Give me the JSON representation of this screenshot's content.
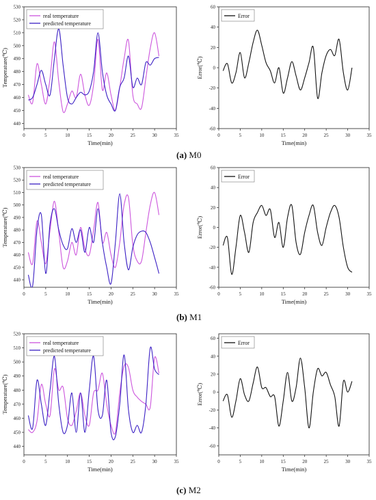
{
  "captions": [
    {
      "letter": "(a)",
      "model": "M0"
    },
    {
      "letter": "(b)",
      "model": "M1"
    },
    {
      "letter": "(c)",
      "model": "M2"
    }
  ],
  "colors": {
    "real": "#cc55dd",
    "predicted": "#3a1fc4",
    "error": "#111111"
  },
  "chart_data": [
    {
      "id": "a-temp",
      "type": "line",
      "xlabel": "Time(min)",
      "ylabel": "Temperature(℃)",
      "xlim": [
        0,
        35
      ],
      "xticks": [
        0,
        5,
        10,
        15,
        20,
        25,
        30,
        35
      ],
      "xtick_labels": [
        "0",
        "5",
        "10",
        "15",
        "20",
        "25",
        "30",
        "35"
      ],
      "ylim": [
        436,
        530
      ],
      "yticks": [
        440,
        450,
        460,
        470,
        480,
        490,
        500,
        510,
        520,
        530
      ],
      "ytick_labels": [
        "440",
        "450",
        "460",
        "470",
        "480",
        "490",
        "500",
        "510",
        "520",
        "530"
      ],
      "legend": "top-left",
      "series": [
        {
          "name": "real temperature",
          "color": "real",
          "x": [
            1,
            2,
            3,
            4,
            5,
            6,
            7,
            8,
            9,
            10,
            11,
            12,
            13,
            14,
            15,
            16,
            17,
            18,
            19,
            20,
            21,
            22,
            23,
            24,
            25,
            26,
            27,
            28,
            29,
            30,
            31
          ],
          "y": [
            462,
            456,
            486,
            470,
            455,
            475,
            503,
            472,
            449,
            455,
            465,
            460,
            478,
            462,
            454,
            470,
            505,
            466,
            479,
            462,
            450,
            468,
            490,
            504,
            462,
            455,
            452,
            475,
            498,
            510,
            492
          ]
        },
        {
          "name": "predicted temperature",
          "color": "predicted",
          "x": [
            1,
            2,
            3,
            4,
            5,
            6,
            7,
            8,
            9,
            10,
            11,
            12,
            13,
            14,
            15,
            16,
            17,
            18,
            19,
            20,
            21,
            22,
            23,
            24,
            25,
            26,
            27,
            28,
            29,
            30,
            31
          ],
          "y": [
            458,
            460,
            470,
            481,
            470,
            462,
            490,
            513,
            485,
            460,
            455,
            460,
            464,
            462,
            465,
            480,
            510,
            480,
            462,
            455,
            450,
            468,
            475,
            492,
            468,
            475,
            470,
            487,
            485,
            490,
            491
          ]
        }
      ]
    },
    {
      "id": "a-err",
      "type": "line",
      "xlabel": "Time(min)",
      "ylabel": "Error(℃)",
      "xlim": [
        0,
        35
      ],
      "xticks": [
        0,
        5,
        10,
        15,
        20,
        25,
        30,
        35
      ],
      "xtick_labels": [
        "0",
        "5",
        "10",
        "15",
        "20",
        "25",
        "30",
        "35"
      ],
      "ylim": [
        -60,
        60
      ],
      "yticks": [
        -60,
        -40,
        -20,
        0,
        20,
        40,
        60
      ],
      "ytick_labels": [
        "-60",
        "-40",
        "-20",
        "0",
        "20",
        "40",
        "60"
      ],
      "legend": "top-left",
      "series": [
        {
          "name": "Error",
          "color": "error",
          "x": [
            1,
            2,
            3,
            4,
            5,
            6,
            7,
            8,
            9,
            10,
            11,
            12,
            13,
            14,
            15,
            16,
            17,
            18,
            19,
            20,
            21,
            22,
            23,
            24,
            25,
            26,
            27,
            28,
            29,
            30,
            31
          ],
          "y": [
            -3,
            4,
            -15,
            -5,
            15,
            -10,
            5,
            25,
            37,
            22,
            5,
            -3,
            -15,
            0,
            -25,
            -10,
            6,
            -8,
            -22,
            -10,
            5,
            20,
            -30,
            -5,
            12,
            18,
            12,
            28,
            -5,
            -22,
            0
          ]
        }
      ]
    },
    {
      "id": "b-temp",
      "type": "line",
      "xlabel": "Time(min)",
      "ylabel": "Temperature(℃)",
      "xlim": [
        0,
        35
      ],
      "xticks": [
        0,
        5,
        10,
        15,
        20,
        25,
        30,
        35
      ],
      "xtick_labels": [
        "0",
        "5",
        "10",
        "15",
        "20",
        "25",
        "30",
        "35"
      ],
      "ylim": [
        434,
        530
      ],
      "yticks": [
        440,
        450,
        460,
        470,
        480,
        490,
        500,
        510,
        520,
        530
      ],
      "ytick_labels": [
        "440",
        "450",
        "460",
        "470",
        "480",
        "490",
        "500",
        "510",
        "520",
        "530"
      ],
      "legend": "top-left",
      "series": [
        {
          "name": "real temperature",
          "color": "real",
          "x": [
            1,
            2,
            3,
            4,
            5,
            6,
            7,
            8,
            9,
            10,
            11,
            12,
            13,
            14,
            15,
            16,
            17,
            18,
            19,
            20,
            21,
            22,
            23,
            24,
            25,
            26,
            27,
            28,
            29,
            30,
            31
          ],
          "y": [
            462,
            453,
            487,
            470,
            453,
            480,
            503,
            478,
            450,
            455,
            470,
            460,
            482,
            465,
            460,
            480,
            502,
            470,
            478,
            460,
            450,
            470,
            500,
            506,
            468,
            455,
            455,
            478,
            500,
            510,
            492
          ]
        },
        {
          "name": "predicted temperature",
          "color": "predicted",
          "x": [
            1,
            2,
            3,
            4,
            5,
            6,
            7,
            8,
            9,
            10,
            11,
            12,
            13,
            14,
            15,
            16,
            17,
            18,
            19,
            20,
            21,
            22,
            23,
            24,
            25,
            26,
            27,
            28,
            29,
            30,
            31
          ],
          "y": [
            444,
            435,
            480,
            492,
            445,
            485,
            497,
            480,
            468,
            465,
            481,
            470,
            480,
            462,
            482,
            470,
            497,
            470,
            450,
            437,
            470,
            509,
            470,
            448,
            466,
            476,
            479,
            478,
            470,
            458,
            445
          ]
        }
      ]
    },
    {
      "id": "b-err",
      "type": "line",
      "xlabel": "Time(min)",
      "ylabel": "Error(℃)",
      "xlim": [
        0,
        35
      ],
      "xticks": [
        0,
        5,
        10,
        15,
        20,
        25,
        30,
        35
      ],
      "xtick_labels": [
        "0",
        "5",
        "10",
        "15",
        "20",
        "25",
        "30",
        "35"
      ],
      "ylim": [
        -60,
        60
      ],
      "yticks": [
        -60,
        -40,
        -20,
        0,
        20,
        40,
        60
      ],
      "ytick_labels": [
        "-60",
        "-40",
        "-20",
        "0",
        "20",
        "40",
        "60"
      ],
      "legend": "top-left",
      "series": [
        {
          "name": "Error",
          "color": "error",
          "x": [
            1,
            2,
            3,
            4,
            5,
            6,
            7,
            8,
            9,
            10,
            11,
            12,
            13,
            14,
            15,
            16,
            17,
            18,
            19,
            20,
            21,
            22,
            23,
            24,
            25,
            26,
            27,
            28,
            29,
            30,
            31
          ],
          "y": [
            -18,
            -10,
            -47,
            -20,
            12,
            -5,
            -25,
            5,
            15,
            22,
            12,
            18,
            -10,
            5,
            -20,
            10,
            22,
            -15,
            -27,
            -5,
            12,
            22,
            -5,
            -18,
            0,
            15,
            22,
            10,
            -20,
            -40,
            -45
          ]
        }
      ]
    },
    {
      "id": "c-temp",
      "type": "line",
      "xlabel": "Time(min)",
      "ylabel": "Temperature(℃)",
      "xlim": [
        0,
        35
      ],
      "xticks": [
        0,
        5,
        10,
        15,
        20,
        25,
        30,
        35
      ],
      "xtick_labels": [
        "0",
        "5",
        "10",
        "15",
        "20",
        "25",
        "30",
        "35"
      ],
      "ylim": [
        434,
        520
      ],
      "yticks": [
        440,
        450,
        460,
        470,
        480,
        490,
        500,
        510,
        520
      ],
      "ytick_labels": [
        "440",
        "450",
        "460",
        "470",
        "480",
        "490",
        "500",
        "510",
        "520"
      ],
      "legend": "top-left",
      "series": [
        {
          "name": "real temperature",
          "color": "real",
          "x": [
            1,
            2,
            3,
            4,
            5,
            6,
            7,
            8,
            9,
            10,
            11,
            12,
            13,
            14,
            15,
            16,
            17,
            18,
            19,
            20,
            21,
            22,
            23,
            24,
            25,
            26,
            27,
            28,
            29,
            30,
            31
          ],
          "y": [
            452,
            450,
            458,
            484,
            470,
            462,
            495,
            480,
            482,
            460,
            455,
            465,
            478,
            462,
            455,
            478,
            480,
            492,
            470,
            455,
            450,
            478,
            497,
            496,
            480,
            475,
            472,
            470,
            468,
            503,
            492
          ]
        },
        {
          "name": "predicted temperature",
          "color": "predicted",
          "x": [
            1,
            2,
            3,
            4,
            5,
            6,
            7,
            8,
            9,
            10,
            11,
            12,
            13,
            14,
            15,
            16,
            17,
            18,
            19,
            20,
            21,
            22,
            23,
            24,
            25,
            26,
            27,
            28,
            29,
            30,
            31
          ],
          "y": [
            462,
            453,
            487,
            470,
            455,
            480,
            504,
            470,
            450,
            455,
            478,
            450,
            478,
            450,
            480,
            504,
            466,
            462,
            487,
            450,
            447,
            470,
            505,
            466,
            450,
            455,
            450,
            470,
            510,
            495,
            491
          ]
        }
      ]
    },
    {
      "id": "c-err",
      "type": "line",
      "xlabel": "Time(min)",
      "ylabel": "Error(℃)",
      "xlim": [
        0,
        35
      ],
      "xticks": [
        0,
        5,
        10,
        15,
        20,
        25,
        30,
        35
      ],
      "xtick_labels": [
        "0",
        "5",
        "10",
        "15",
        "20",
        "25",
        "30",
        "35"
      ],
      "ylim": [
        -70,
        65
      ],
      "yticks": [
        -60,
        -40,
        -20,
        0,
        20,
        40,
        60
      ],
      "ytick_labels": [
        "-60",
        "-40",
        "-20",
        "0",
        "20",
        "40",
        "60"
      ],
      "legend": "top-left",
      "series": [
        {
          "name": "Error",
          "color": "error",
          "x": [
            1,
            2,
            3,
            4,
            5,
            6,
            7,
            8,
            9,
            10,
            11,
            12,
            13,
            14,
            15,
            16,
            17,
            18,
            19,
            20,
            21,
            22,
            23,
            24,
            25,
            26,
            27,
            28,
            29,
            30,
            31
          ],
          "y": [
            -10,
            -3,
            -28,
            -10,
            15,
            -3,
            -10,
            10,
            28,
            5,
            5,
            -5,
            -5,
            -38,
            -10,
            22,
            -10,
            5,
            38,
            5,
            -40,
            0,
            26,
            18,
            22,
            8,
            -5,
            -38,
            12,
            0,
            12
          ]
        }
      ]
    }
  ]
}
